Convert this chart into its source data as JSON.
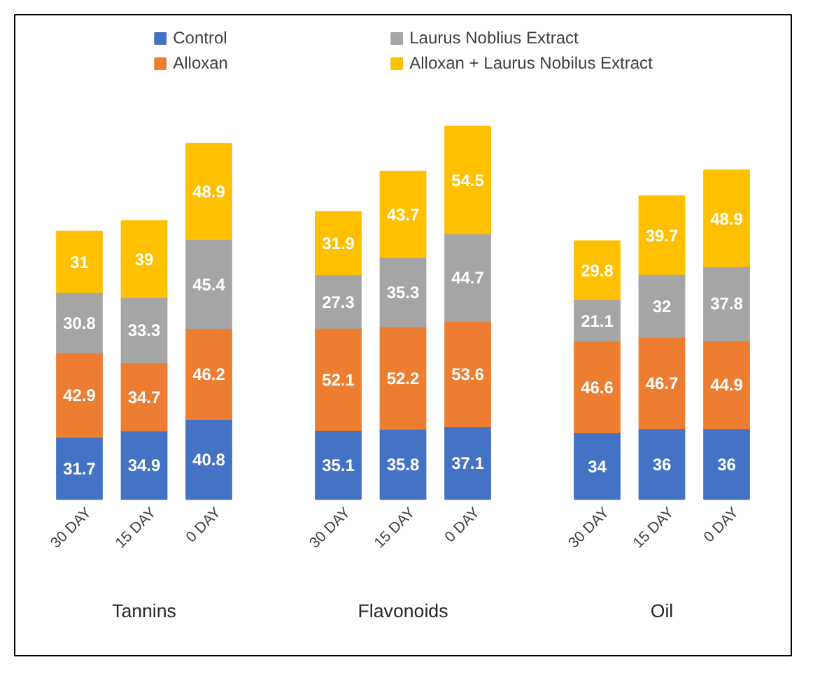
{
  "chart_data": {
    "type": "bar",
    "stacked": true,
    "data_labels": true,
    "legend": "top",
    "grid": false,
    "categories": [
      "30 DAY",
      "15 DAY",
      "0 DAY",
      null,
      "30 DAY",
      "15 DAY",
      "0 DAY",
      null,
      "30 DAY",
      "15 DAY",
      "0 DAY"
    ],
    "series": [
      {
        "name": "Control",
        "color": "#4472c4",
        "values": [
          31.7,
          34.9,
          40.8,
          null,
          35.1,
          35.8,
          37.1,
          null,
          34,
          36,
          36
        ]
      },
      {
        "name": "Alloxan",
        "color": "#ed7d31",
        "values": [
          42.9,
          34.7,
          46.2,
          null,
          52.1,
          52.2,
          53.6,
          null,
          46.6,
          46.7,
          44.9
        ]
      },
      {
        "name": "Laurus Noblius Extract",
        "color": "#a5a5a5",
        "values": [
          30.8,
          33.3,
          45.4,
          null,
          27.3,
          35.3,
          44.7,
          null,
          21.1,
          32,
          37.8
        ]
      },
      {
        "name": "Alloxan + Laurus Nobilus Extract",
        "color": "#ffc000",
        "values": [
          31,
          39,
          48.9,
          null,
          31.9,
          43.7,
          54.5,
          null,
          29.8,
          39.7,
          48.9
        ]
      }
    ],
    "annotations": [
      "Tannins",
      "Flavonoids",
      "Oil"
    ]
  }
}
